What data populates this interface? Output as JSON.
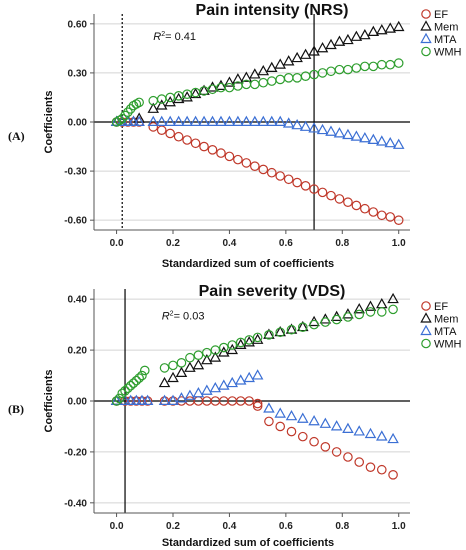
{
  "chart_data": [
    {
      "type": "scatter",
      "panel_label": "(A)",
      "title": "Pain intensity (NRS)",
      "xlabel": "Standardized sum of coefficients",
      "ylabel": "Coefficients",
      "xlim": [
        -0.08,
        1.04
      ],
      "ylim": [
        -0.66,
        0.66
      ],
      "xticks": [
        0.0,
        0.2,
        0.4,
        0.6,
        0.8,
        1.0
      ],
      "xtick_labels": [
        "0.0",
        "0.2",
        "0.4",
        "0.6",
        "0.8",
        "1.0"
      ],
      "yticks": [
        0.6,
        0.3,
        0.0,
        -0.3,
        -0.6
      ],
      "ytick_labels": [
        "0.60",
        "0.30",
        "0.00",
        "-0.30",
        "-0.60"
      ],
      "grid": "horizontal",
      "annotation": {
        "prefix": "R",
        "sup": "2",
        "suffix": "= 0.41",
        "x": 0.13,
        "y": 0.5
      },
      "vlines": [
        {
          "x": 0.02,
          "style": "dotted"
        },
        {
          "x": 0.7,
          "style": "solid"
        }
      ],
      "series": [
        {
          "name": "EF",
          "marker": "circle",
          "color": "#c0392b",
          "x": [
            0.0,
            0.02,
            0.04,
            0.06,
            0.08,
            0.13,
            0.16,
            0.19,
            0.22,
            0.25,
            0.28,
            0.31,
            0.34,
            0.37,
            0.4,
            0.43,
            0.46,
            0.49,
            0.52,
            0.55,
            0.58,
            0.61,
            0.64,
            0.67,
            0.7,
            0.73,
            0.76,
            0.79,
            0.82,
            0.85,
            0.88,
            0.91,
            0.94,
            0.97,
            1.0
          ],
          "y": [
            0.0,
            0.0,
            0.0,
            0.0,
            0.0,
            -0.03,
            -0.05,
            -0.07,
            -0.09,
            -0.11,
            -0.13,
            -0.15,
            -0.17,
            -0.19,
            -0.21,
            -0.23,
            -0.25,
            -0.27,
            -0.29,
            -0.31,
            -0.33,
            -0.35,
            -0.37,
            -0.39,
            -0.41,
            -0.43,
            -0.45,
            -0.47,
            -0.49,
            -0.51,
            -0.53,
            -0.55,
            -0.57,
            -0.58,
            -0.6
          ]
        },
        {
          "name": "Mem",
          "marker": "triangle",
          "color": "#111111",
          "x": [
            0.0,
            0.02,
            0.04,
            0.06,
            0.08,
            0.13,
            0.16,
            0.19,
            0.22,
            0.25,
            0.28,
            0.31,
            0.34,
            0.37,
            0.4,
            0.43,
            0.46,
            0.49,
            0.52,
            0.55,
            0.58,
            0.61,
            0.64,
            0.67,
            0.7,
            0.73,
            0.76,
            0.79,
            0.82,
            0.85,
            0.88,
            0.91,
            0.94,
            0.97,
            1.0
          ],
          "y": [
            0.0,
            0.0,
            0.0,
            0.0,
            0.02,
            0.08,
            0.1,
            0.12,
            0.14,
            0.15,
            0.17,
            0.19,
            0.21,
            0.22,
            0.24,
            0.26,
            0.27,
            0.29,
            0.31,
            0.33,
            0.35,
            0.37,
            0.39,
            0.41,
            0.43,
            0.45,
            0.47,
            0.49,
            0.5,
            0.52,
            0.53,
            0.55,
            0.56,
            0.57,
            0.58
          ]
        },
        {
          "name": "MTA",
          "marker": "triangle",
          "color": "#3b6fd4",
          "x": [
            0.0,
            0.02,
            0.04,
            0.06,
            0.08,
            0.13,
            0.16,
            0.19,
            0.22,
            0.25,
            0.28,
            0.31,
            0.34,
            0.37,
            0.4,
            0.43,
            0.46,
            0.49,
            0.52,
            0.55,
            0.58,
            0.61,
            0.64,
            0.67,
            0.7,
            0.73,
            0.76,
            0.79,
            0.82,
            0.85,
            0.88,
            0.91,
            0.94,
            0.97,
            1.0
          ],
          "y": [
            0.0,
            0.0,
            0.0,
            0.0,
            0.0,
            0.0,
            0.0,
            0.0,
            0.0,
            0.0,
            0.0,
            0.0,
            0.0,
            0.0,
            0.0,
            0.0,
            0.0,
            0.0,
            0.0,
            0.0,
            0.0,
            -0.01,
            -0.02,
            -0.03,
            -0.04,
            -0.05,
            -0.06,
            -0.07,
            -0.08,
            -0.09,
            -0.1,
            -0.11,
            -0.12,
            -0.13,
            -0.14
          ]
        },
        {
          "name": "WMH",
          "marker": "circle",
          "color": "#2e9e2e",
          "x": [
            0.0,
            0.01,
            0.02,
            0.03,
            0.04,
            0.05,
            0.06,
            0.07,
            0.08,
            0.13,
            0.16,
            0.19,
            0.22,
            0.25,
            0.28,
            0.31,
            0.34,
            0.37,
            0.4,
            0.43,
            0.46,
            0.49,
            0.52,
            0.55,
            0.58,
            0.61,
            0.64,
            0.67,
            0.7,
            0.73,
            0.76,
            0.79,
            0.82,
            0.85,
            0.88,
            0.91,
            0.94,
            0.97,
            1.0
          ],
          "y": [
            0.0,
            0.01,
            0.02,
            0.04,
            0.06,
            0.08,
            0.1,
            0.11,
            0.12,
            0.13,
            0.14,
            0.15,
            0.16,
            0.17,
            0.18,
            0.19,
            0.2,
            0.21,
            0.21,
            0.22,
            0.23,
            0.23,
            0.24,
            0.25,
            0.26,
            0.27,
            0.27,
            0.28,
            0.29,
            0.3,
            0.31,
            0.32,
            0.32,
            0.33,
            0.34,
            0.34,
            0.35,
            0.35,
            0.36
          ]
        }
      ]
    },
    {
      "type": "scatter",
      "panel_label": "(B)",
      "title": "Pain severity (VDS)",
      "xlabel": "Standardized sum of coefficients",
      "ylabel": "Coefficients",
      "xlim": [
        -0.08,
        1.04
      ],
      "ylim": [
        -0.44,
        0.44
      ],
      "xticks": [
        0.0,
        0.2,
        0.4,
        0.6,
        0.8,
        1.0
      ],
      "xtick_labels": [
        "0.0",
        "0.2",
        "0.4",
        "0.6",
        "0.8",
        "1.0"
      ],
      "yticks": [
        0.4,
        0.2,
        0.0,
        -0.2,
        -0.4
      ],
      "ytick_labels": [
        "0.40",
        "0.20",
        "0.00",
        "-0.20",
        "-0.40"
      ],
      "grid": "horizontal",
      "annotation": {
        "prefix": "R",
        "sup": "2",
        "suffix": "= 0.03",
        "x": 0.16,
        "y": 0.32
      },
      "vlines": [
        {
          "x": 0.03,
          "style": "solid"
        }
      ],
      "series": [
        {
          "name": "EF",
          "marker": "circle",
          "color": "#c0392b",
          "x": [
            0.0,
            0.03,
            0.05,
            0.07,
            0.09,
            0.11,
            0.17,
            0.2,
            0.23,
            0.26,
            0.29,
            0.32,
            0.35,
            0.38,
            0.41,
            0.44,
            0.47,
            0.5,
            0.5,
            0.54,
            0.58,
            0.62,
            0.66,
            0.7,
            0.74,
            0.78,
            0.82,
            0.86,
            0.9,
            0.94,
            0.98
          ],
          "y": [
            0.0,
            0.0,
            0.0,
            0.0,
            0.0,
            0.0,
            0.0,
            0.0,
            0.0,
            0.0,
            0.0,
            0.0,
            0.0,
            0.0,
            0.0,
            0.0,
            0.0,
            -0.01,
            -0.02,
            -0.08,
            -0.1,
            -0.12,
            -0.14,
            -0.16,
            -0.18,
            -0.2,
            -0.22,
            -0.24,
            -0.26,
            -0.27,
            -0.29
          ]
        },
        {
          "name": "Mem",
          "marker": "triangle",
          "color": "#111111",
          "x": [
            0.0,
            0.17,
            0.2,
            0.23,
            0.26,
            0.29,
            0.32,
            0.35,
            0.38,
            0.41,
            0.44,
            0.47,
            0.5,
            0.54,
            0.58,
            0.62,
            0.66,
            0.7,
            0.74,
            0.78,
            0.82,
            0.86,
            0.9,
            0.94,
            0.98
          ],
          "y": [
            0.0,
            0.07,
            0.09,
            0.11,
            0.13,
            0.14,
            0.16,
            0.17,
            0.19,
            0.2,
            0.22,
            0.23,
            0.24,
            0.26,
            0.27,
            0.28,
            0.29,
            0.31,
            0.32,
            0.33,
            0.34,
            0.36,
            0.37,
            0.38,
            0.4
          ]
        },
        {
          "name": "MTA",
          "marker": "triangle",
          "color": "#3b6fd4",
          "x": [
            0.0,
            0.03,
            0.05,
            0.07,
            0.09,
            0.11,
            0.17,
            0.2,
            0.23,
            0.26,
            0.29,
            0.32,
            0.35,
            0.38,
            0.41,
            0.44,
            0.47,
            0.5,
            0.54,
            0.58,
            0.62,
            0.66,
            0.7,
            0.74,
            0.78,
            0.82,
            0.86,
            0.9,
            0.94,
            0.98
          ],
          "y": [
            0.0,
            0.0,
            0.0,
            0.0,
            0.0,
            0.0,
            0.0,
            0.0,
            0.01,
            0.02,
            0.03,
            0.04,
            0.05,
            0.06,
            0.07,
            0.08,
            0.09,
            0.1,
            -0.03,
            -0.05,
            -0.06,
            -0.07,
            -0.08,
            -0.09,
            -0.1,
            -0.11,
            -0.12,
            -0.13,
            -0.14,
            -0.15
          ]
        },
        {
          "name": "WMH",
          "marker": "circle",
          "color": "#2e9e2e",
          "x": [
            0.0,
            0.01,
            0.02,
            0.03,
            0.04,
            0.05,
            0.06,
            0.07,
            0.08,
            0.09,
            0.1,
            0.17,
            0.2,
            0.23,
            0.26,
            0.29,
            0.32,
            0.35,
            0.38,
            0.41,
            0.44,
            0.47,
            0.5,
            0.54,
            0.58,
            0.62,
            0.66,
            0.7,
            0.74,
            0.78,
            0.82,
            0.86,
            0.9,
            0.94,
            0.98
          ],
          "y": [
            0.0,
            0.01,
            0.03,
            0.04,
            0.05,
            0.06,
            0.07,
            0.08,
            0.09,
            0.1,
            0.12,
            0.13,
            0.14,
            0.15,
            0.17,
            0.18,
            0.19,
            0.2,
            0.21,
            0.22,
            0.23,
            0.24,
            0.25,
            0.26,
            0.27,
            0.28,
            0.29,
            0.3,
            0.31,
            0.32,
            0.33,
            0.34,
            0.35,
            0.35,
            0.36
          ]
        }
      ]
    }
  ]
}
